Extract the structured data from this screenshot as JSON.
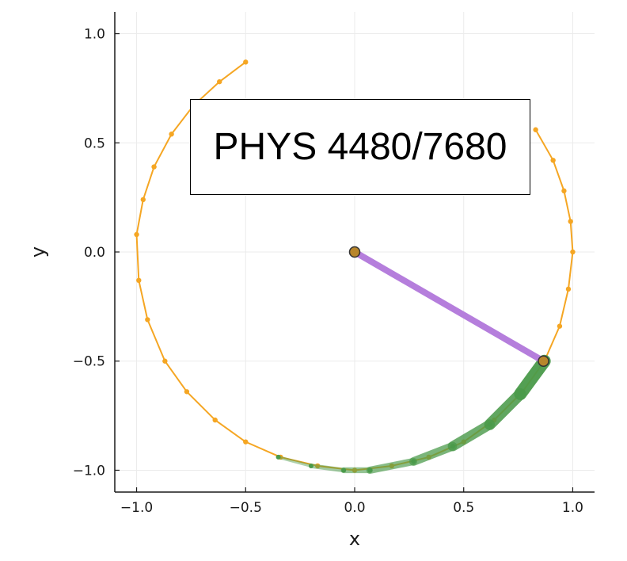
{
  "chart_data": {
    "type": "scatter",
    "title_box": "PHYS 4480/7680",
    "xlabel": "x",
    "ylabel": "y",
    "xlim": [
      -1.1,
      1.1
    ],
    "ylim": [
      -1.1,
      1.1
    ],
    "xticks": [
      -1.0,
      -0.5,
      0.0,
      0.5,
      1.0
    ],
    "yticks": [
      -1.0,
      -0.5,
      0.0,
      0.5,
      1.0
    ],
    "xtick_labels": [
      "−1.0",
      "−0.5",
      "0.0",
      "0.5",
      "1.0"
    ],
    "ytick_labels": [
      "−1.0",
      "−0.5",
      "0.0",
      "0.5",
      "1.0"
    ],
    "grid": true,
    "legend": "none",
    "colors": {
      "trajectory": "#f5a623",
      "rod": "#b57edc",
      "trail": "#4a9a4a",
      "bob": "#b8862b",
      "axis": "#1a1a1a",
      "grid": "#ebebeb"
    },
    "series": [
      {
        "kind": "trajectory",
        "x": [
          -0.5,
          -0.62,
          -0.74,
          -0.84,
          -0.92,
          -0.97,
          -1.0,
          -0.99,
          -0.95,
          -0.87,
          -0.77,
          -0.64,
          -0.5,
          -0.34,
          -0.17,
          0.0,
          0.17,
          0.34,
          0.5,
          0.64,
          0.77,
          0.87,
          0.94,
          0.98,
          1.0,
          0.99,
          0.96,
          0.91,
          0.83
        ],
        "y": [
          0.87,
          0.78,
          0.67,
          0.54,
          0.39,
          0.24,
          0.08,
          -0.13,
          -0.31,
          -0.5,
          -0.64,
          -0.77,
          -0.87,
          -0.94,
          -0.98,
          -1.0,
          -0.98,
          -0.94,
          -0.87,
          -0.77,
          -0.64,
          -0.5,
          -0.34,
          -0.17,
          0.0,
          0.14,
          0.28,
          0.42,
          0.56
        ]
      },
      {
        "kind": "trail",
        "x": [
          -0.35,
          -0.2,
          -0.05,
          0.07,
          0.27,
          0.45,
          0.62,
          0.76,
          0.87
        ],
        "y": [
          -0.94,
          -0.98,
          -1.0,
          -1.0,
          -0.96,
          -0.89,
          -0.79,
          -0.65,
          -0.5
        ]
      },
      {
        "kind": "rod",
        "x": [
          0.0,
          0.866
        ],
        "y": [
          0.0,
          -0.5
        ]
      },
      {
        "kind": "pivot",
        "x": [
          0.0
        ],
        "y": [
          0.0
        ]
      },
      {
        "kind": "bob",
        "x": [
          0.866
        ],
        "y": [
          -0.5
        ]
      }
    ]
  }
}
